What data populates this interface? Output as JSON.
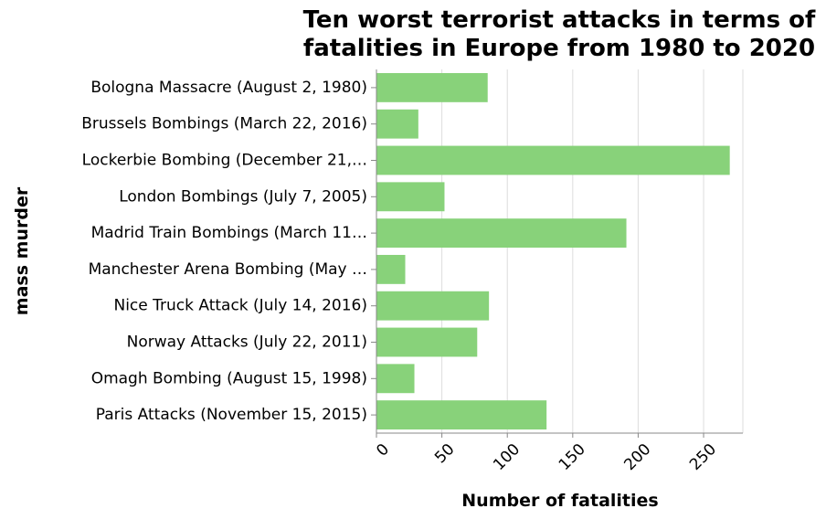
{
  "chart_data": {
    "type": "bar",
    "orientation": "horizontal",
    "title_lines": [
      "Ten worst terrorist attacks in terms of",
      "fatalities in Europe from 1980 to 2020"
    ],
    "xlabel": "Number of fatalities",
    "ylabel": "mass murder",
    "xlim": [
      0,
      280
    ],
    "xticks": [
      0,
      50,
      100,
      150,
      200,
      250
    ],
    "grid": true,
    "color": "#88d27a",
    "categories": [
      "Bologna Massacre (August 2, 1980)",
      "Brussels Bombings (March 22, 2016)",
      "Lockerbie Bombing (December 21,…",
      "London Bombings (July 7, 2005)",
      "Madrid Train Bombings  (March 11…",
      "Manchester Arena Bombing (May …",
      "Nice Truck Attack (July 14, 2016)",
      "Norway Attacks (July 22, 2011)",
      "Omagh Bombing (August 15, 1998)",
      "Paris Attacks (November 15, 2015)"
    ],
    "values": [
      85,
      32,
      270,
      52,
      191,
      22,
      86,
      77,
      29,
      130
    ]
  }
}
